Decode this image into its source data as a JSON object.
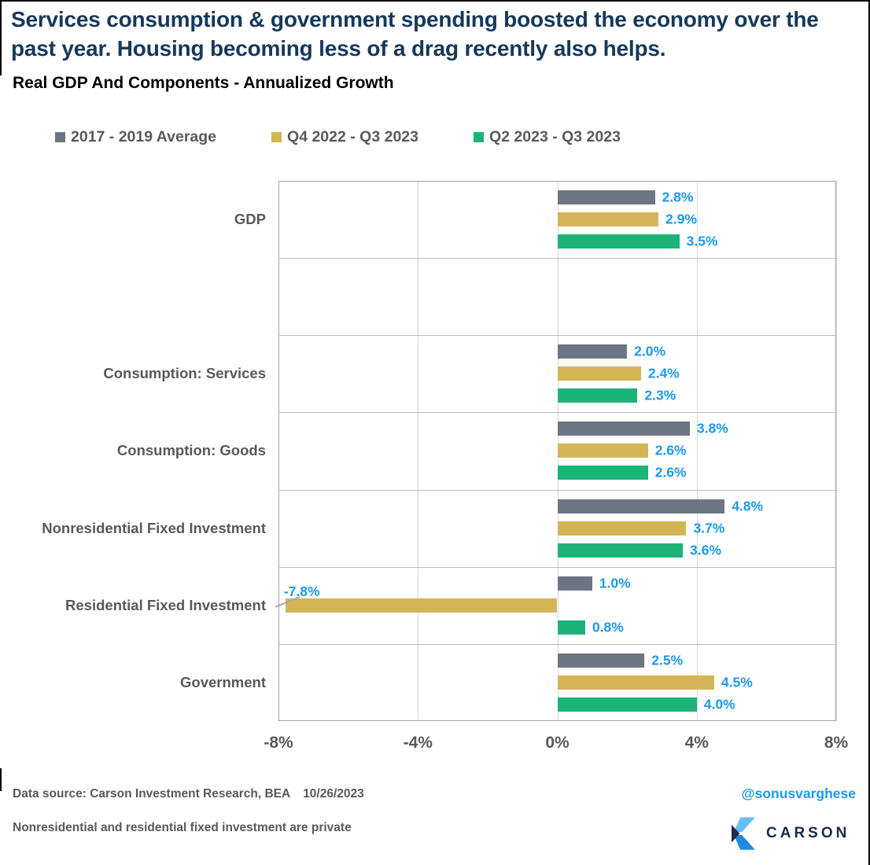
{
  "header": {
    "title": "Services consumption & government spending boosted the economy over the past year. Housing becoming less of a drag recently also helps.",
    "subtitle": "Real GDP And Components - Annualized Growth"
  },
  "chart_data": {
    "type": "bar",
    "orientation": "horizontal",
    "title": "Real GDP And Components - Annualized Growth",
    "categories": [
      "GDP",
      "",
      "Consumption: Services",
      "Consumption: Goods",
      "Nonresidential Fixed Investment",
      "Residential Fixed Investment",
      "Government"
    ],
    "series": [
      {
        "name": "2017 - 2019 Average",
        "color": "#6C7682",
        "values": [
          2.8,
          null,
          2.0,
          3.8,
          4.8,
          1.0,
          2.5
        ],
        "labels": [
          "2.8%",
          "",
          "2.0%",
          "3.8%",
          "4.8%",
          "1.0%",
          "2.5%"
        ]
      },
      {
        "name": "Q4 2022 - Q3 2023",
        "color": "#D4B456",
        "values": [
          2.9,
          null,
          2.4,
          2.6,
          3.7,
          -7.8,
          4.5
        ],
        "labels": [
          "2.9%",
          "",
          "2.4%",
          "2.6%",
          "3.7%",
          "-7.8%",
          "4.5%"
        ]
      },
      {
        "name": "Q2 2023 - Q3 2023",
        "color": "#1CB377",
        "values": [
          3.5,
          null,
          2.3,
          2.6,
          3.6,
          0.8,
          4.0
        ],
        "labels": [
          "3.5%",
          "",
          "2.3%",
          "2.6%",
          "3.6%",
          "0.8%",
          "4.0%"
        ]
      }
    ],
    "xlim": [
      -8,
      8
    ],
    "x_ticks": [
      {
        "value": -8,
        "label": "-8%"
      },
      {
        "value": -4,
        "label": "-4%"
      },
      {
        "value": 0,
        "label": "0%"
      },
      {
        "value": 4,
        "label": "4%"
      },
      {
        "value": 8,
        "label": "8%"
      }
    ],
    "value_label_color": "#1B9AEC",
    "grid": true,
    "legend_position": "top"
  },
  "footer": {
    "source": "Data source: Carson Investment Research, BEA",
    "date": "10/26/2023",
    "handle": "@sonusvarghese",
    "note": "Nonresidential and residential fixed investment are private",
    "logo_text": "CARSON"
  },
  "colors": {
    "title_navy": "#16385A",
    "text_gray": "#595959",
    "value_blue": "#1B9AEC",
    "gridline": "#d8d8d8",
    "logo_navy": "#1B2A4A",
    "logo_blue": "#1E88E5",
    "logo_light_blue": "#66BFF2"
  }
}
